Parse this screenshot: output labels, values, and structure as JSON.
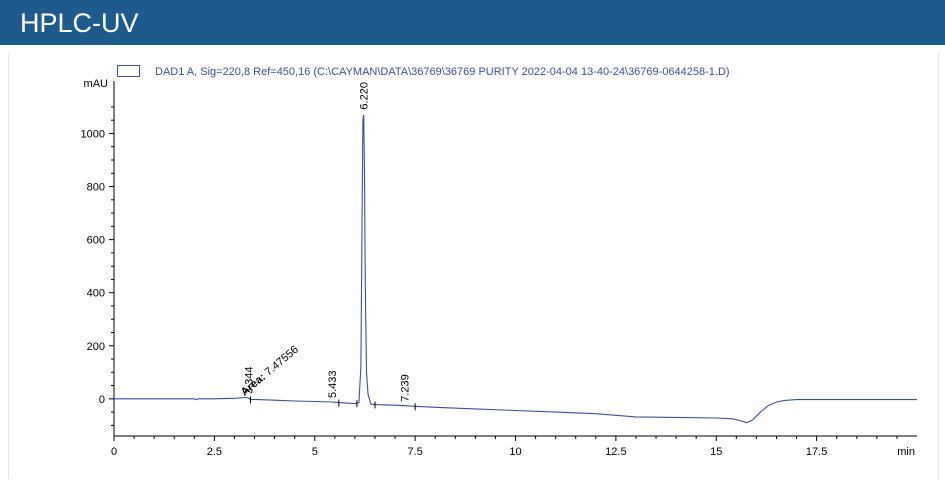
{
  "header": {
    "title": "HPLC-UV"
  },
  "colors": {
    "header_bg": "#1f5a8c",
    "trace": "#3a4fa0",
    "axis": "#000000",
    "legend_text": "#3a4fa0"
  },
  "chart_data": {
    "type": "line",
    "title": "",
    "legend": [
      {
        "name": "DAD1 A, Sig=220,8 Ref=450,16 (C:\\CAYMAN\\DATA\\36769\\36769 PURITY 2022-04-04 13-40-24\\36769-0644258-1.D)"
      }
    ],
    "xlabel": "min",
    "ylabel": "mAU",
    "xlim": [
      0,
      20
    ],
    "ylim": [
      -140,
      1160
    ],
    "x_ticks": [
      {
        "value": 0,
        "label": "0"
      },
      {
        "value": 2.5,
        "label": "2.5"
      },
      {
        "value": 5,
        "label": "5"
      },
      {
        "value": 7.5,
        "label": "7.5"
      },
      {
        "value": 10,
        "label": "10"
      },
      {
        "value": 12.5,
        "label": "12.5"
      },
      {
        "value": 15,
        "label": "15"
      },
      {
        "value": 17.5,
        "label": "17.5"
      }
    ],
    "y_ticks": [
      {
        "value": 0,
        "label": "0"
      },
      {
        "value": 200,
        "label": "200"
      },
      {
        "value": 400,
        "label": "400"
      },
      {
        "value": 600,
        "label": "600"
      },
      {
        "value": 800,
        "label": "800"
      },
      {
        "value": 1000,
        "label": "1000"
      }
    ],
    "series": [
      {
        "name": "DAD1 A, Sig=220,8 Ref=450,16",
        "x": [
          0,
          2.0,
          2.05,
          2.1,
          2.2,
          2.5,
          3.0,
          3.3,
          3.344,
          3.4,
          3.6,
          4.0,
          4.5,
          5.0,
          5.433,
          5.6,
          5.8,
          6.0,
          6.1,
          6.15,
          6.18,
          6.2,
          6.22,
          6.24,
          6.26,
          6.29,
          6.33,
          6.4,
          6.6,
          7.0,
          7.239,
          7.5,
          8.0,
          9.0,
          10.0,
          11.0,
          12.0,
          13.0,
          14.0,
          15.0,
          15.4,
          15.6,
          15.75,
          15.9,
          16.1,
          16.3,
          16.5,
          16.7,
          17.0,
          18.0,
          19.0,
          20.0
        ],
        "y": [
          0,
          0,
          -3,
          0,
          0,
          0,
          2,
          5,
          3,
          -2,
          -3,
          -5,
          -8,
          -10,
          -12,
          -14,
          -16,
          -18,
          -15,
          120,
          700,
          1050,
          1070,
          850,
          420,
          100,
          15,
          -20,
          -22,
          -24,
          -26,
          -28,
          -32,
          -38,
          -44,
          -50,
          -56,
          -68,
          -70,
          -72,
          -75,
          -82,
          -90,
          -80,
          -50,
          -25,
          -12,
          -6,
          -3,
          -3,
          -3,
          -3
        ]
      }
    ],
    "peak_labels": [
      {
        "x": 3.344,
        "label": "3.344"
      },
      {
        "x": 5.433,
        "label": "5.433"
      },
      {
        "x": 6.22,
        "label": "6.220"
      },
      {
        "x": 7.239,
        "label": "7.239"
      }
    ],
    "annotations": [
      {
        "x": 3.8,
        "y": 10,
        "label_bold": "Area:",
        "label_value": " 7.47556"
      }
    ]
  }
}
